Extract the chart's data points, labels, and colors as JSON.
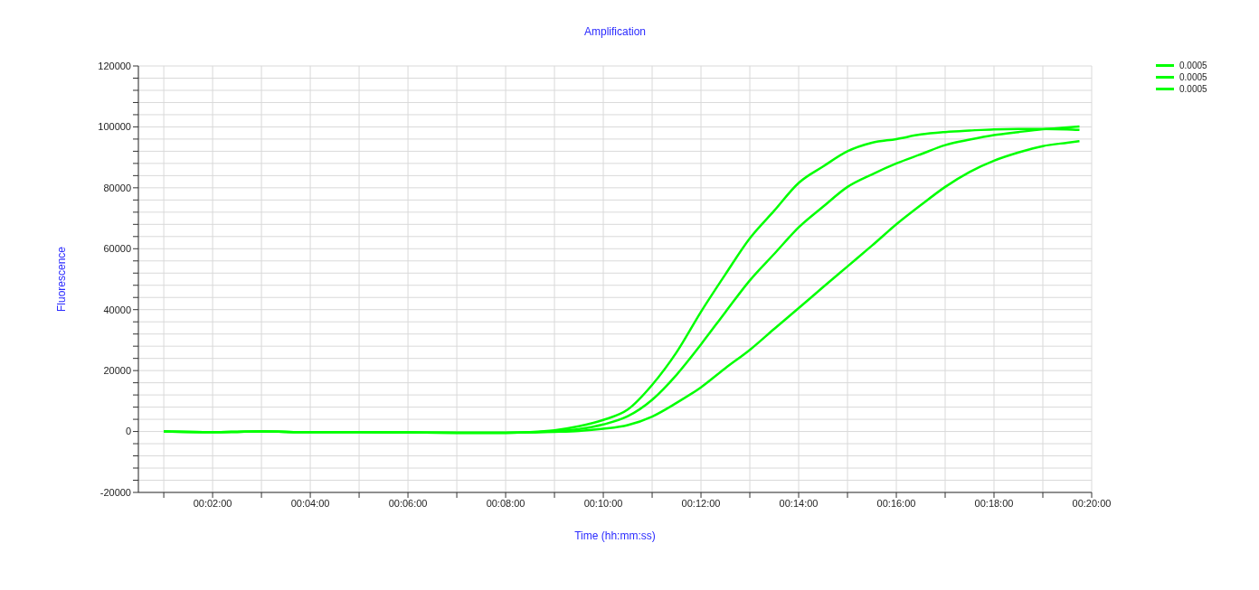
{
  "chart_data": {
    "type": "line",
    "title": "Amplification",
    "xlabel": "Time (hh:mm:ss)",
    "ylabel": "Fluorescence",
    "x": [
      0.016667,
      0.033333,
      0.05,
      0.066667,
      0.083333,
      0.1,
      0.116667,
      0.133333,
      0.141667,
      0.15,
      0.158333,
      0.166667,
      0.175,
      0.183333,
      0.191667,
      0.2,
      0.208333,
      0.216667,
      0.225,
      0.233333,
      0.241667,
      0.25,
      0.258333,
      0.266667,
      0.275,
      0.283333,
      0.291667,
      0.3,
      0.308333,
      0.316667,
      0.325,
      0.329167
    ],
    "series": [
      {
        "name": "0.0005",
        "color": "#00ff00",
        "values": [
          0,
          -200,
          0,
          -200,
          -200,
          -300,
          -400,
          -400,
          -200,
          400,
          1700,
          3800,
          7200,
          15300,
          26000,
          39300,
          51600,
          63400,
          72500,
          81600,
          87000,
          92000,
          94800,
          96000,
          97500,
          98300,
          98800,
          99200,
          99300,
          99300,
          99200,
          99000
        ]
      },
      {
        "name": "0.0005",
        "color": "#00ff00",
        "values": [
          0,
          -200,
          0,
          -200,
          -200,
          -300,
          -400,
          -400,
          -300,
          100,
          800,
          2300,
          5000,
          10400,
          18600,
          28600,
          39200,
          49600,
          58300,
          67000,
          73800,
          80300,
          84400,
          88000,
          91000,
          94000,
          95800,
          97300,
          98300,
          99200,
          99800,
          100100
        ]
      },
      {
        "name": "0.0005",
        "color": "#00ff00",
        "values": [
          0,
          -200,
          0,
          -200,
          -200,
          -300,
          -400,
          -400,
          -300,
          -100,
          200,
          900,
          2100,
          4900,
          9400,
          14500,
          20800,
          26800,
          33700,
          40500,
          47400,
          54200,
          61000,
          68000,
          74300,
          80300,
          85200,
          88900,
          91600,
          93700,
          94800,
          95300
        ]
      }
    ],
    "xlim": [
      0.008,
      0.333333
    ],
    "xticks": [
      {
        "value": 0.016667,
        "label": null
      },
      {
        "value": 0.033333,
        "label": "00:02:00"
      },
      {
        "value": 0.05,
        "label": null
      },
      {
        "value": 0.066667,
        "label": "00:04:00"
      },
      {
        "value": 0.083333,
        "label": null
      },
      {
        "value": 0.1,
        "label": "00:06:00"
      },
      {
        "value": 0.116667,
        "label": null
      },
      {
        "value": 0.133333,
        "label": "00:08:00"
      },
      {
        "value": 0.15,
        "label": null
      },
      {
        "value": 0.166667,
        "label": "00:10:00"
      },
      {
        "value": 0.183333,
        "label": null
      },
      {
        "value": 0.2,
        "label": "00:12:00"
      },
      {
        "value": 0.216667,
        "label": null
      },
      {
        "value": 0.233333,
        "label": "00:14:00"
      },
      {
        "value": 0.25,
        "label": null
      },
      {
        "value": 0.266667,
        "label": "00:16:00"
      },
      {
        "value": 0.283333,
        "label": null
      },
      {
        "value": 0.3,
        "label": "00:18:00"
      },
      {
        "value": 0.316667,
        "label": null
      },
      {
        "value": 0.333333,
        "label": "00:20:00"
      }
    ],
    "ylim": [
      -20000,
      120000
    ],
    "yticks": [
      -20000,
      {
        "value": -16000,
        "label": null
      },
      {
        "value": -12000,
        "label": null
      },
      {
        "value": -8000,
        "label": null
      },
      {
        "value": -4000,
        "label": null
      },
      0,
      {
        "value": 4000,
        "label": null
      },
      {
        "value": 8000,
        "label": null
      },
      {
        "value": 12000,
        "label": null
      },
      {
        "value": 16000,
        "label": null
      },
      20000,
      {
        "value": 24000,
        "label": null
      },
      {
        "value": 28000,
        "label": null
      },
      {
        "value": 32000,
        "label": null
      },
      {
        "value": 36000,
        "label": null
      },
      40000,
      {
        "value": 44000,
        "label": null
      },
      {
        "value": 48000,
        "label": null
      },
      {
        "value": 52000,
        "label": null
      },
      {
        "value": 56000,
        "label": null
      },
      60000,
      {
        "value": 64000,
        "label": null
      },
      {
        "value": 68000,
        "label": null
      },
      {
        "value": 72000,
        "label": null
      },
      {
        "value": 76000,
        "label": null
      },
      80000,
      {
        "value": 84000,
        "label": null
      },
      {
        "value": 88000,
        "label": null
      },
      {
        "value": 92000,
        "label": null
      },
      {
        "value": 96000,
        "label": null
      },
      100000,
      {
        "value": 104000,
        "label": null
      },
      {
        "value": 108000,
        "label": null
      },
      {
        "value": 112000,
        "label": null
      },
      {
        "value": 116000,
        "label": null
      },
      120000
    ],
    "grid": true,
    "legend": "top right"
  }
}
